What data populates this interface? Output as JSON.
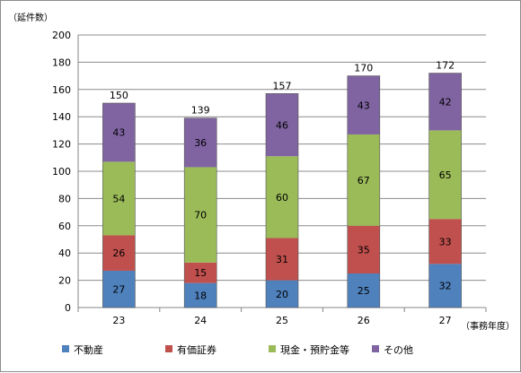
{
  "chart_data": {
    "type": "bar",
    "stacked": true,
    "categories": [
      "23",
      "24",
      "25",
      "26",
      "27"
    ],
    "series": [
      {
        "name": "不動産",
        "color": "#4f81bd",
        "values": [
          27,
          18,
          20,
          25,
          32
        ]
      },
      {
        "name": "有価証券",
        "color": "#c0504d",
        "values": [
          26,
          15,
          31,
          35,
          33
        ]
      },
      {
        "name": "現金・預貯金等",
        "color": "#9bbb59",
        "values": [
          54,
          70,
          60,
          67,
          65
        ]
      },
      {
        "name": "その他",
        "color": "#8064a2",
        "values": [
          43,
          36,
          46,
          43,
          42
        ]
      }
    ],
    "totals": [
      150,
      139,
      157,
      170,
      172
    ],
    "ylim": [
      0,
      200
    ],
    "yticks": [
      "0",
      "20",
      "40",
      "60",
      "80",
      "100",
      "120",
      "140",
      "160",
      "180",
      "200"
    ],
    "ylabel": "（延件数）",
    "xlabel": "（事務年度）",
    "grid": true,
    "legend_position": "bottom"
  }
}
